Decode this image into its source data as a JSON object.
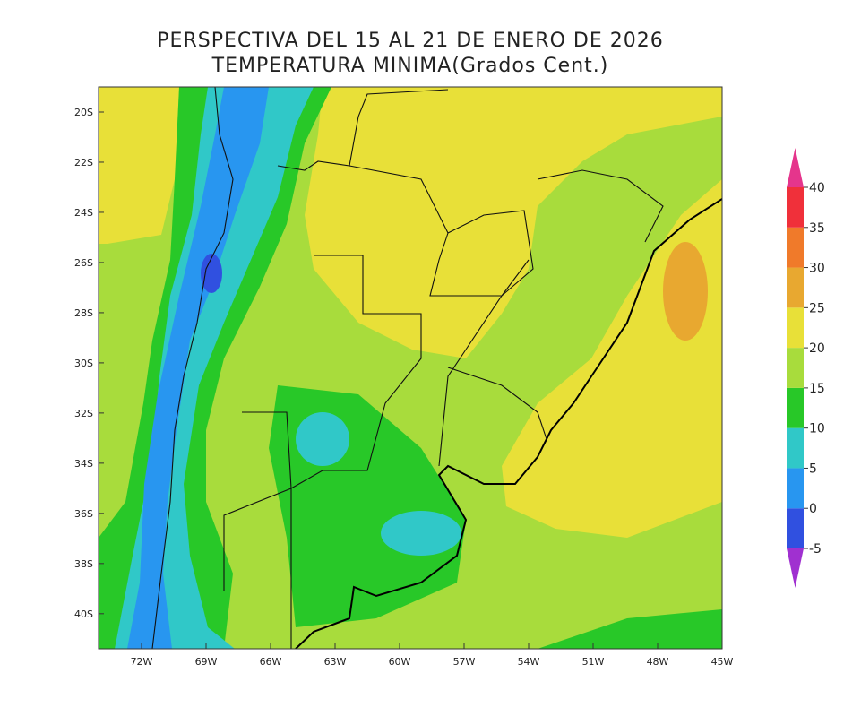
{
  "title": [
    "PERSPECTIVA DEL 15 AL 21 DE ENERO DE 2026",
    "TEMPERATURA MINIMA(Grados Cent.)"
  ],
  "map": {
    "latlim": [
      -41.4,
      -19
    ],
    "lonlim": [
      -74,
      -45
    ],
    "lat_ticks": [
      {
        "value": -20,
        "label": "20S"
      },
      {
        "value": -22,
        "label": "22S"
      },
      {
        "value": -24,
        "label": "24S"
      },
      {
        "value": -26,
        "label": "26S"
      },
      {
        "value": -28,
        "label": "28S"
      },
      {
        "value": -30,
        "label": "30S"
      },
      {
        "value": -32,
        "label": "32S"
      },
      {
        "value": -34,
        "label": "34S"
      },
      {
        "value": -36,
        "label": "36S"
      },
      {
        "value": -38,
        "label": "38S"
      },
      {
        "value": -40,
        "label": "40S"
      }
    ],
    "lon_ticks": [
      {
        "value": -72,
        "label": "72W"
      },
      {
        "value": -69,
        "label": "69W"
      },
      {
        "value": -66,
        "label": "66W"
      },
      {
        "value": -63,
        "label": "63W"
      },
      {
        "value": -60,
        "label": "60W"
      },
      {
        "value": -57,
        "label": "57W"
      },
      {
        "value": -54,
        "label": "54W"
      },
      {
        "value": -51,
        "label": "51W"
      },
      {
        "value": -48,
        "label": "48W"
      },
      {
        "value": -45,
        "label": "45W"
      }
    ]
  },
  "colorbar": {
    "levels": [
      -5,
      0,
      5,
      10,
      15,
      20,
      25,
      30,
      35,
      40
    ],
    "colors": [
      "#a030d0",
      "#3050e0",
      "#2896f0",
      "#30c8c8",
      "#28c828",
      "#a8dc3c",
      "#e8e038",
      "#e8a830",
      "#f07a2a",
      "#f0303a",
      "#e5358c"
    ]
  }
}
